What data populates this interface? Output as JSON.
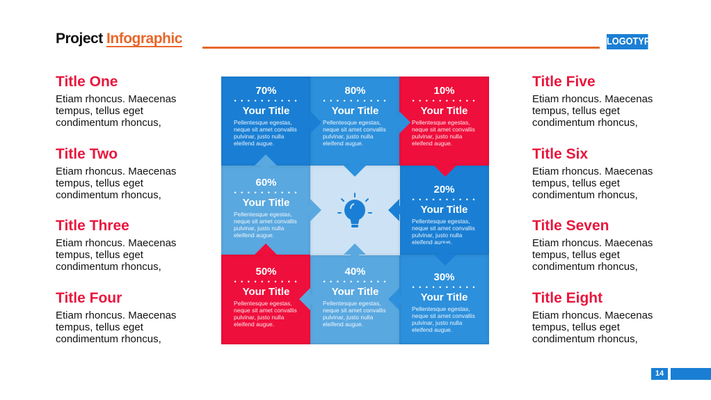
{
  "header": {
    "title_prefix": "Project",
    "title_accent": "Infographic",
    "logo": "LOGOTYPE"
  },
  "colors": {
    "accent_orange": "#e8672a",
    "red": "#ef0f3c",
    "blue_dark": "#1a7fd4",
    "blue_mid": "#2d90dc",
    "blue_light": "#5aa8e0",
    "center": "#cde3f5"
  },
  "left_items": [
    {
      "title": "Title One",
      "body": "Etiam rhoncus. Maecenas tempus, tellus eget condimentum rhoncus,"
    },
    {
      "title": "Title Two",
      "body": "Etiam rhoncus. Maecenas tempus, tellus eget condimentum rhoncus,"
    },
    {
      "title": "Title Three",
      "body": "Etiam rhoncus. Maecenas tempus, tellus eget condimentum rhoncus,"
    },
    {
      "title": "Title Four",
      "body": "Etiam rhoncus. Maecenas tempus, tellus eget condimentum rhoncus,"
    }
  ],
  "right_items": [
    {
      "title": "Title Five",
      "body": "Etiam rhoncus. Maecenas tempus, tellus eget condimentum rhoncus,"
    },
    {
      "title": "Title Six",
      "body": "Etiam rhoncus. Maecenas tempus, tellus eget condimentum rhoncus,"
    },
    {
      "title": "Title Seven",
      "body": "Etiam rhoncus. Maecenas tempus, tellus eget condimentum rhoncus,"
    },
    {
      "title": "Title Eight",
      "body": "Etiam rhoncus. Maecenas tempus, tellus eget condimentum rhoncus,"
    }
  ],
  "cells": [
    {
      "pct": "70%",
      "title": "Your Title",
      "desc": "Pellentesque egestas, neque sit amet convallis pulvinar, justo nulla eleifend augue.",
      "color": "#1a7fd4"
    },
    {
      "pct": "80%",
      "title": "Your Title",
      "desc": "Pellentesque egestas, neque sit amet convallis pulvinar, justo nulla eleifend augue.",
      "color": "#2d90dc"
    },
    {
      "pct": "10%",
      "title": "Your Title",
      "desc": "Pellentesque egestas, neque sit amet convallis pulvinar, justo nulla eleifend augue.",
      "color": "#ef0f3c"
    },
    {
      "pct": "60%",
      "title": "Your Title",
      "desc": "Pellentesque egestas, neque sit amet convallis pulvinar, justo nulla eleifend augue.",
      "color": "#5aa8e0"
    },
    {
      "pct": "20%",
      "title": "Your Title",
      "desc": "Pellentesque egestas, neque sit amet convallis pulvinar, justo nulla eleifend augue.",
      "color": "#1a7fd4"
    },
    {
      "pct": "50%",
      "title": "Your Title",
      "desc": "Pellentesque egestas, neque sit amet convallis pulvinar, justo nulla eleifend augue.",
      "color": "#ef0f3c"
    },
    {
      "pct": "40%",
      "title": "Your Title",
      "desc": "Pellentesque egestas, neque sit amet convallis pulvinar, justo nulla eleifend augue.",
      "color": "#5aa8e0"
    },
    {
      "pct": "30%",
      "title": "Your Title",
      "desc": "Pellentesque egestas, neque sit amet convallis pulvinar, justo nulla eleifend augue.",
      "color": "#2d90dc"
    }
  ],
  "center_icon": "lightbulb-icon",
  "dots": "• • • • • • • • • •",
  "page_number": "14"
}
